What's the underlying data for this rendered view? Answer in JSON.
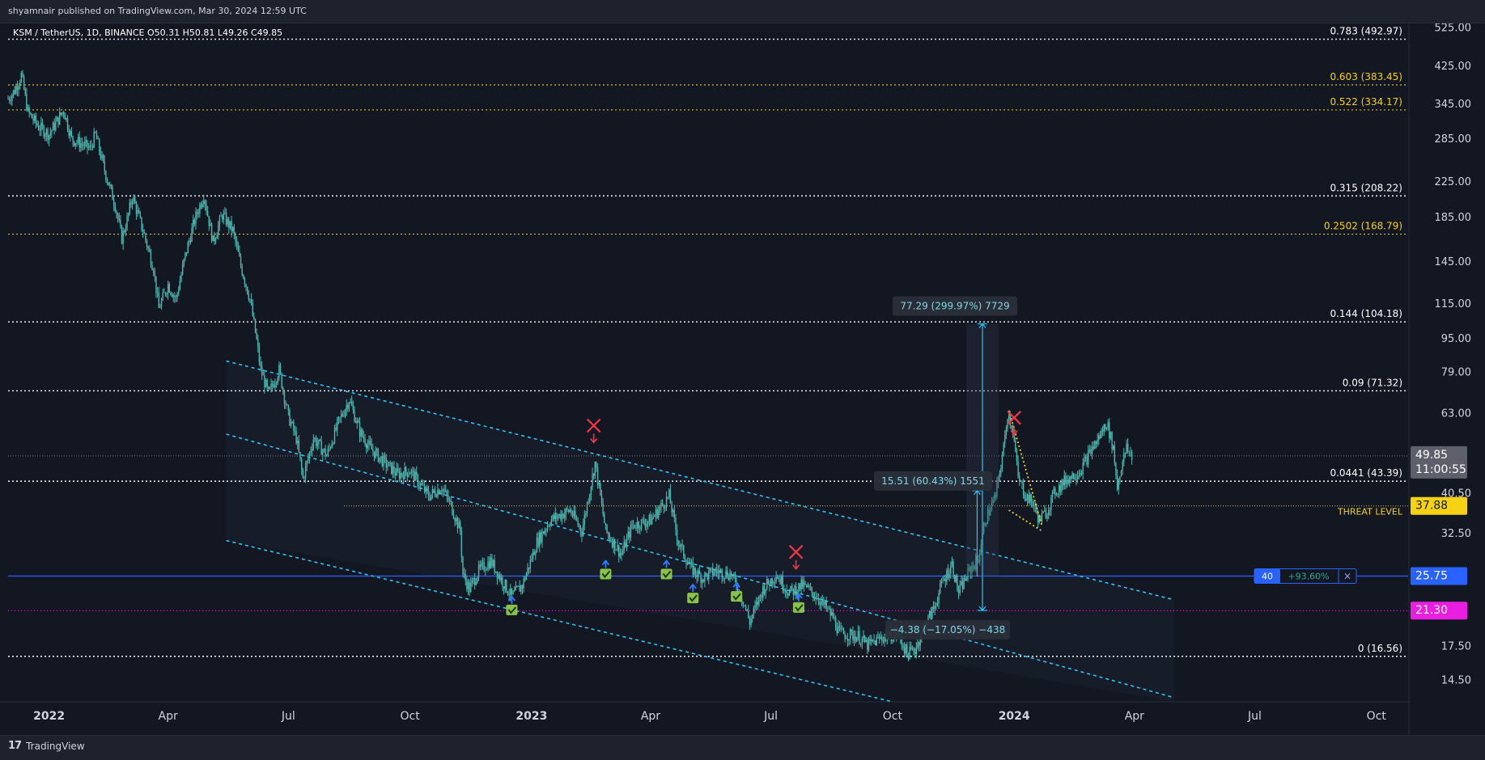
{
  "header": {
    "published_by": "shyamnair published on TradingView.com, Mar 30, 2024 12:59 UTC",
    "symbol_line": "KSM / TetherUS, 1D, BINANCE  O50.31  H50.81  L49.26  C49.85"
  },
  "footer": {
    "brand": "TradingView",
    "brand_mark": "17"
  },
  "colors": {
    "background": "#131722",
    "axis_text": "#d1d4dc",
    "fib_white": "#ffffff",
    "fib_yellow": "#f5d214",
    "channel": "#29c5f6",
    "candle": "#4fb8b0",
    "price_tag": "#5d606b",
    "threat_tag": "#f5d214",
    "blue_line": "#2962ff",
    "magenta_tag": "#e91ee0",
    "cross": "#f23645",
    "check": "#8bc34a"
  },
  "chart_data": {
    "type": "candlestick",
    "title": "KSM / TetherUS, 1D, BINANCE",
    "log_scale": true,
    "x_range": [
      "2021-12-01",
      "2024-10-25"
    ],
    "y_range": [
      12.9,
      540
    ],
    "x_ticks": [
      {
        "label": "2022",
        "date": "2022-01-01",
        "bold": true
      },
      {
        "label": "Apr",
        "date": "2022-04-01"
      },
      {
        "label": "Jul",
        "date": "2022-07-01"
      },
      {
        "label": "Oct",
        "date": "2022-10-01"
      },
      {
        "label": "2023",
        "date": "2023-01-01",
        "bold": true
      },
      {
        "label": "Apr",
        "date": "2023-04-01"
      },
      {
        "label": "Jul",
        "date": "2023-07-01"
      },
      {
        "label": "Oct",
        "date": "2023-10-01"
      },
      {
        "label": "2024",
        "date": "2024-01-01",
        "bold": true
      },
      {
        "label": "Apr",
        "date": "2024-04-01"
      },
      {
        "label": "Jul",
        "date": "2024-07-01"
      },
      {
        "label": "Oct",
        "date": "2024-10-01"
      }
    ],
    "y_ticks": [
      "525.00",
      "425.00",
      "345.00",
      "285.00",
      "225.00",
      "185.00",
      "145.00",
      "115.00",
      "95.00",
      "79.00",
      "63.00",
      "40.50",
      "32.50",
      "17.50",
      "14.50"
    ],
    "fib_levels": [
      {
        "label": "0.783 (492.97)",
        "value": 492.97,
        "color": "white"
      },
      {
        "label": "0.603 (383.45)",
        "value": 383.45,
        "color": "yellow"
      },
      {
        "label": "0.522 (334.17)",
        "value": 334.17,
        "color": "yellow"
      },
      {
        "label": "0.315 (208.22)",
        "value": 208.22,
        "color": "white"
      },
      {
        "label": "0.2502 (168.79)",
        "value": 168.79,
        "color": "yellow"
      },
      {
        "label": "0.144 (104.18)",
        "value": 104.18,
        "color": "white"
      },
      {
        "label": "0.09 (71.32)",
        "value": 71.32,
        "color": "white"
      },
      {
        "label": "0.0441 (43.39)",
        "value": 43.39,
        "color": "white"
      },
      {
        "label": "0 (16.56)",
        "value": 16.56,
        "color": "white"
      }
    ],
    "threat_level": {
      "label": "THREAT LEVEL",
      "value": 37.88,
      "tag": "37.88"
    },
    "last_price": {
      "value": 49.85,
      "tag": "49.85",
      "countdown": "11:00:55"
    },
    "blue_level": {
      "value": 25.75,
      "tag": "25.75",
      "badge_qty": "40",
      "badge_pct": "+93.60%",
      "badge_close": "×"
    },
    "magenta_level": {
      "value": 21.3,
      "tag": "21.30"
    },
    "measurements": [
      {
        "text": "77.29 (299.97%) 7729",
        "from_date": "2023-12-08",
        "from": 25.77,
        "to": 103.06
      },
      {
        "text": "15.51 (60.43%) 1551",
        "from_date": "2023-12-04",
        "from": 25.67,
        "to": 41.18
      },
      {
        "text": "−4.38 (−17.05%) −438",
        "from_date": "2023-12-08",
        "from": 25.7,
        "to": 21.32
      }
    ],
    "channel_lines": [
      {
        "from": [
          "2022-05-15",
          84
        ],
        "to": [
          "2024-05-01",
          22.6
        ]
      },
      {
        "from": [
          "2022-05-15",
          56.2
        ],
        "to": [
          "2024-05-01",
          13.2
        ]
      },
      {
        "from": [
          "2022-05-15",
          31.3
        ],
        "to": [
          "2023-10-01",
          12.9
        ]
      }
    ],
    "wedge_lines": [
      {
        "from": [
          "2023-12-28",
          64
        ],
        "to": [
          "2024-01-22",
          34
        ]
      },
      {
        "from": [
          "2023-12-28",
          37
        ],
        "to": [
          "2024-01-22",
          33
        ]
      }
    ],
    "cross_markers": [
      {
        "date": "2023-02-17",
        "price": 58.9
      },
      {
        "date": "2023-07-20",
        "price": 29.4
      },
      {
        "date": "2024-01-01",
        "price": 61.5
      }
    ],
    "check_markers": [
      {
        "date": "2022-12-17",
        "price": 22.0
      },
      {
        "date": "2023-02-26",
        "price": 26.8
      },
      {
        "date": "2023-04-13",
        "price": 26.8
      },
      {
        "date": "2023-05-03",
        "price": 23.5
      },
      {
        "date": "2023-06-05",
        "price": 23.7
      },
      {
        "date": "2023-07-22",
        "price": 22.3
      }
    ],
    "price_path": [
      [
        "2021-12-01",
        355
      ],
      [
        "2021-12-06",
        372
      ],
      [
        "2021-12-11",
        405
      ],
      [
        "2021-12-16",
        330
      ],
      [
        "2021-12-24",
        305
      ],
      [
        "2022-01-01",
        292
      ],
      [
        "2022-01-08",
        318
      ],
      [
        "2022-01-12",
        334
      ],
      [
        "2022-01-18",
        285
      ],
      [
        "2022-01-25",
        278
      ],
      [
        "2022-02-01",
        270
      ],
      [
        "2022-02-05",
        292
      ],
      [
        "2022-02-12",
        240
      ],
      [
        "2022-02-20",
        198
      ],
      [
        "2022-02-25",
        165
      ],
      [
        "2022-03-01",
        182
      ],
      [
        "2022-03-05",
        208
      ],
      [
        "2022-03-14",
        168
      ],
      [
        "2022-03-21",
        140
      ],
      [
        "2022-03-25",
        112
      ],
      [
        "2022-04-01",
        128
      ],
      [
        "2022-04-07",
        118
      ],
      [
        "2022-04-14",
        150
      ],
      [
        "2022-04-21",
        182
      ],
      [
        "2022-04-28",
        210
      ],
      [
        "2022-05-05",
        162
      ],
      [
        "2022-05-12",
        188
      ],
      [
        "2022-05-20",
        172
      ],
      [
        "2022-05-26",
        142
      ],
      [
        "2022-06-02",
        118
      ],
      [
        "2022-06-07",
        94
      ],
      [
        "2022-06-10",
        80
      ],
      [
        "2022-06-16",
        70
      ],
      [
        "2022-06-24",
        80
      ],
      [
        "2022-07-01",
        62
      ],
      [
        "2022-07-07",
        55
      ],
      [
        "2022-07-12",
        44
      ],
      [
        "2022-07-20",
        55
      ],
      [
        "2022-07-30",
        50
      ],
      [
        "2022-08-08",
        60
      ],
      [
        "2022-08-16",
        68
      ],
      [
        "2022-08-24",
        57
      ],
      [
        "2022-09-01",
        52
      ],
      [
        "2022-09-12",
        48
      ],
      [
        "2022-09-22",
        45
      ],
      [
        "2022-10-01",
        46
      ],
      [
        "2022-10-15",
        40
      ],
      [
        "2022-10-25",
        42
      ],
      [
        "2022-11-01",
        38
      ],
      [
        "2022-11-08",
        33
      ],
      [
        "2022-11-10",
        26
      ],
      [
        "2022-11-15",
        24
      ],
      [
        "2022-11-22",
        26.5
      ],
      [
        "2022-12-01",
        28
      ],
      [
        "2022-12-10",
        25
      ],
      [
        "2022-12-17",
        23
      ],
      [
        "2022-12-25",
        24.5
      ],
      [
        "2023-01-05",
        31
      ],
      [
        "2023-01-15",
        35
      ],
      [
        "2023-01-30",
        37
      ],
      [
        "2023-02-08",
        33
      ],
      [
        "2023-02-18",
        48
      ],
      [
        "2023-02-26",
        33
      ],
      [
        "2023-03-10",
        29
      ],
      [
        "2023-03-18",
        34
      ],
      [
        "2023-04-01",
        35
      ],
      [
        "2023-04-15",
        40
      ],
      [
        "2023-04-22",
        31
      ],
      [
        "2023-05-01",
        27
      ],
      [
        "2023-05-10",
        25.5
      ],
      [
        "2023-05-20",
        26.5
      ],
      [
        "2023-06-01",
        26
      ],
      [
        "2023-06-10",
        22.5
      ],
      [
        "2023-06-15",
        20
      ],
      [
        "2023-06-25",
        24
      ],
      [
        "2023-07-05",
        26
      ],
      [
        "2023-07-15",
        23.5
      ],
      [
        "2023-07-25",
        24.5
      ],
      [
        "2023-08-05",
        23
      ],
      [
        "2023-08-17",
        20.5
      ],
      [
        "2023-08-22",
        18.8
      ],
      [
        "2023-09-05",
        18.5
      ],
      [
        "2023-09-12",
        17.6
      ],
      [
        "2023-09-25",
        18.5
      ],
      [
        "2023-10-05",
        18.8
      ],
      [
        "2023-10-12",
        16.8
      ],
      [
        "2023-10-18",
        17.2
      ],
      [
        "2023-10-25",
        19.5
      ],
      [
        "2023-11-01",
        21.5
      ],
      [
        "2023-11-08",
        25
      ],
      [
        "2023-11-15",
        27.5
      ],
      [
        "2023-11-20",
        23.5
      ],
      [
        "2023-11-28",
        26.5
      ],
      [
        "2023-12-05",
        28.5
      ],
      [
        "2023-12-10",
        35
      ],
      [
        "2023-12-18",
        40
      ],
      [
        "2023-12-24",
        52
      ],
      [
        "2023-12-27",
        63
      ],
      [
        "2023-12-31",
        58
      ],
      [
        "2024-01-04",
        44
      ],
      [
        "2024-01-10",
        40
      ],
      [
        "2024-01-15",
        38.5
      ],
      [
        "2024-01-20",
        35
      ],
      [
        "2024-01-25",
        36.5
      ],
      [
        "2024-02-01",
        41
      ],
      [
        "2024-02-10",
        44
      ],
      [
        "2024-02-20",
        46
      ],
      [
        "2024-02-29",
        52
      ],
      [
        "2024-03-05",
        55
      ],
      [
        "2024-03-11",
        60
      ],
      [
        "2024-03-16",
        52
      ],
      [
        "2024-03-19",
        42
      ],
      [
        "2024-03-22",
        47
      ],
      [
        "2024-03-26",
        52
      ],
      [
        "2024-03-30",
        49.85
      ]
    ]
  }
}
